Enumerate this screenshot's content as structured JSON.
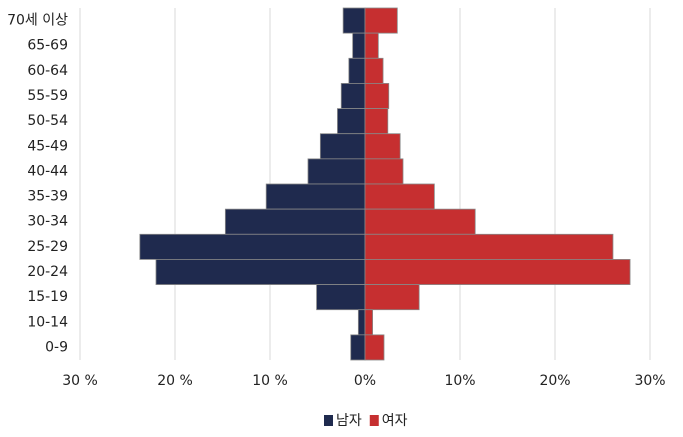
{
  "chart_data": {
    "type": "pyramid",
    "categories": [
      "70세 이상",
      "65-69",
      "60-64",
      "55-59",
      "50-54",
      "45-49",
      "40-44",
      "35-39",
      "30-34",
      "25-29",
      "20-24",
      "15-19",
      "10-14",
      "0-9"
    ],
    "series": [
      {
        "name": "남자",
        "color": "#1f2a4e",
        "values": [
          -2.3,
          -1.3,
          -1.7,
          -2.5,
          -2.9,
          -4.7,
          -6.0,
          -10.4,
          -14.7,
          -23.7,
          -22.0,
          -5.1,
          -0.7,
          -1.5
        ]
      },
      {
        "name": "여자",
        "color": "#c62f30",
        "values": [
          3.4,
          1.4,
          1.9,
          2.5,
          2.4,
          3.7,
          4.0,
          7.3,
          11.6,
          26.1,
          27.9,
          5.7,
          0.8,
          2.0
        ]
      }
    ],
    "xlim": [
      -30,
      30
    ],
    "xticks": [
      {
        "value": -30,
        "label": "30 %"
      },
      {
        "value": -20,
        "label": "20 %"
      },
      {
        "value": -10,
        "label": "10 %"
      },
      {
        "value": 0,
        "label": "0%"
      },
      {
        "value": 10,
        "label": "10%"
      },
      {
        "value": 20,
        "label": "20%"
      },
      {
        "value": 30,
        "label": "30%"
      }
    ],
    "grid": true,
    "legend": "bottom"
  }
}
